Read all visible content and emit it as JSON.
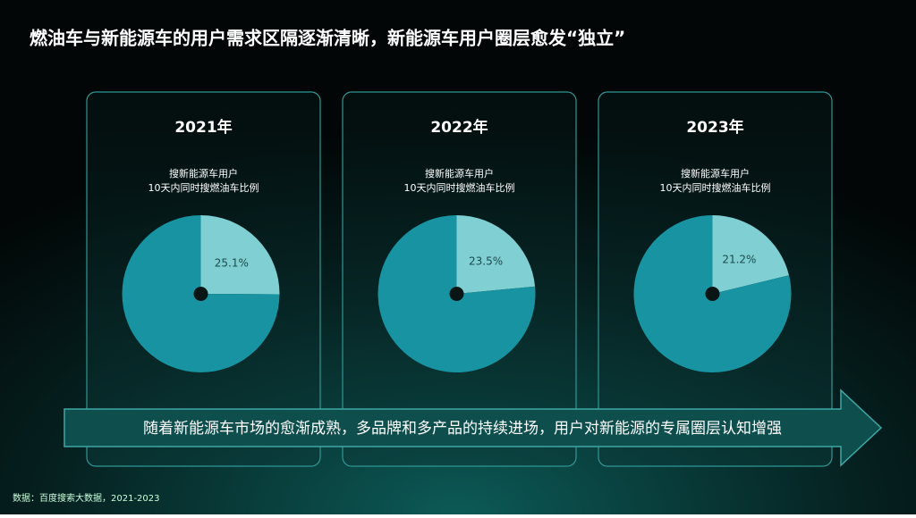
{
  "title": "燃油车与新能源车的用户需求区隔逐渐清晰，新能源车用户圈层愈发“独立”",
  "chart_data": [
    {
      "type": "pie",
      "title": "2021年",
      "subtitle": [
        "搜新能源车用户",
        "10天内同时搜燃油车比例"
      ],
      "categories": [
        null,
        null
      ],
      "values": [
        25.1,
        74.9
      ],
      "value_labels": [
        "25.1%",
        null
      ],
      "colors": [
        "#7fcfd3",
        "#1793a1"
      ]
    },
    {
      "type": "pie",
      "title": "2022年",
      "subtitle": [
        "搜新能源车用户",
        "10天内同时搜燃油车比例"
      ],
      "categories": [
        null,
        null
      ],
      "values": [
        23.5,
        76.5
      ],
      "value_labels": [
        "23.5%",
        null
      ],
      "colors": [
        "#7fcfd3",
        "#1793a1"
      ]
    },
    {
      "type": "pie",
      "title": "2023年",
      "subtitle": [
        "搜新能源车用户",
        "10天内同时搜燃油车比例"
      ],
      "categories": [
        null,
        null
      ],
      "values": [
        21.2,
        78.8
      ],
      "value_labels": [
        "21.2%",
        null
      ],
      "colors": [
        "#7fcfd3",
        "#1793a1"
      ]
    }
  ],
  "banner": "随着新能源车市场的愈渐成熟，多品牌和多产品的持续进场，用户对新能源的专属圈层认知增强",
  "source": "数据：百度搜索大数据，2021-2023"
}
